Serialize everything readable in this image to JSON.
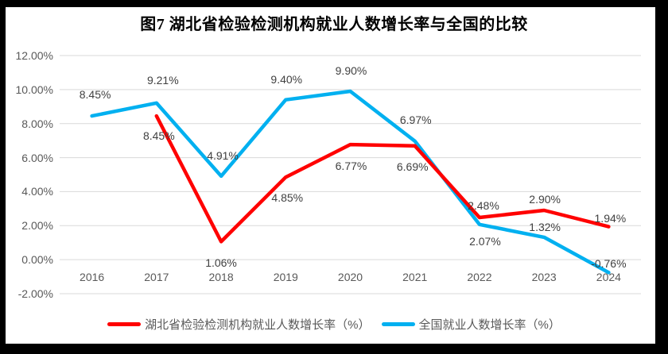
{
  "chart": {
    "title": "图7 湖北省检验检测机构就业人数增长率与全国的比较",
    "legend": [
      {
        "label": "湖北省检验检测机构就业人数增长率（%）",
        "color": "#ff0000"
      },
      {
        "label": "全国就业人数增长率（%）",
        "color": "#00b0f0"
      }
    ]
  },
  "chart_data": {
    "type": "line",
    "title": "图7 湖北省检验检测机构就业人数增长率与全国的比较",
    "categories": [
      "2016",
      "2017",
      "2018",
      "2019",
      "2020",
      "2021",
      "2022",
      "2023",
      "2024"
    ],
    "series": [
      {
        "name": "湖北省检验检测机构就业人数增长率（%）",
        "color": "#ff0000",
        "values": [
          null,
          8.45,
          1.06,
          4.85,
          6.77,
          6.69,
          2.48,
          2.9,
          1.94
        ],
        "labels": [
          "",
          "8.45%",
          "1.06%",
          "4.85%",
          "6.77%",
          "6.69%",
          "2.48%",
          "2.90%",
          "1.94%"
        ],
        "label_offsets": [
          [
            0,
            0
          ],
          [
            3,
            25
          ],
          [
            0,
            27
          ],
          [
            2,
            26
          ],
          [
            1,
            27
          ],
          [
            -3,
            26
          ],
          [
            5,
            -15
          ],
          [
            1,
            -14
          ],
          [
            2,
            -11
          ]
        ]
      },
      {
        "name": "全国就业人数增长率（%）",
        "color": "#00b0f0",
        "values": [
          8.45,
          9.21,
          4.91,
          9.4,
          9.9,
          6.97,
          2.07,
          1.32,
          -0.76
        ],
        "labels": [
          "8.45%",
          "9.21%",
          "4.91%",
          "9.40%",
          "9.90%",
          "6.97%",
          "2.07%",
          "1.32%",
          "-0.76%"
        ],
        "label_offsets": [
          [
            4,
            -27
          ],
          [
            8,
            -29
          ],
          [
            2,
            -26
          ],
          [
            1,
            -26
          ],
          [
            1,
            -26
          ],
          [
            1,
            -27
          ],
          [
            7,
            21
          ],
          [
            1,
            -13
          ],
          [
            0,
            -11
          ]
        ]
      }
    ],
    "yticks": [
      {
        "v": 12,
        "label": "12.00%"
      },
      {
        "v": 10,
        "label": "10.00%"
      },
      {
        "v": 8,
        "label": "8.00%"
      },
      {
        "v": 6,
        "label": "6.00%"
      },
      {
        "v": 4,
        "label": "4.00%"
      },
      {
        "v": 2,
        "label": "2.00%"
      },
      {
        "v": 0,
        "label": "0.00%"
      },
      {
        "v": -2,
        "label": "-2.00%"
      }
    ],
    "ylim": [
      -2,
      12
    ],
    "grid": true,
    "gridline_color": "#d9d9d9",
    "legend_position": "bottom"
  }
}
